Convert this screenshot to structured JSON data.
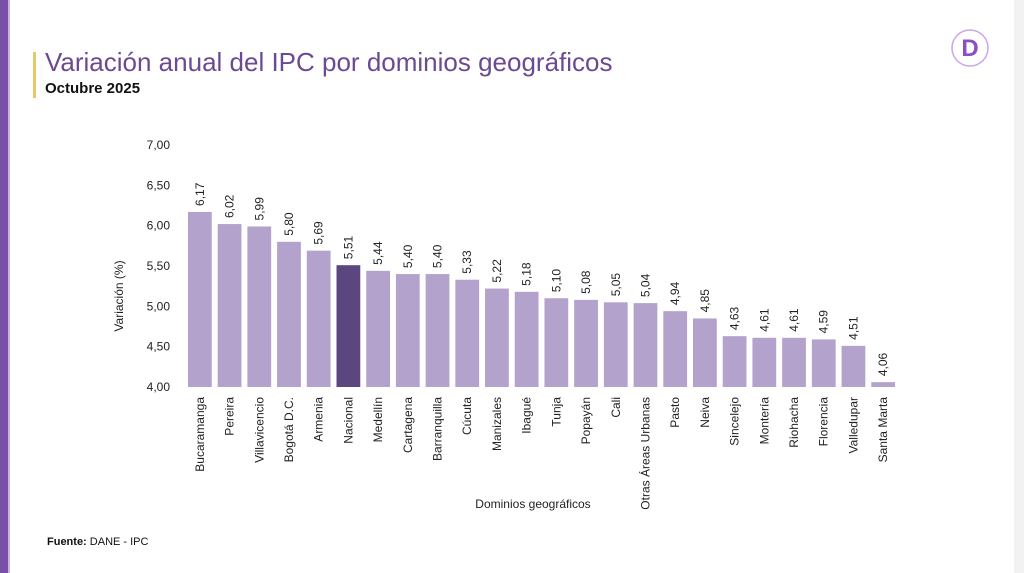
{
  "header": {
    "title": "Variación anual del IPC por dominios geográficos",
    "subtitle": "Octubre 2025"
  },
  "logo": {
    "letter": "D",
    "icon": "brand-d-logo",
    "color": "#8a4fc8"
  },
  "footer": {
    "source_label": "Fuente:",
    "source_value": " DANE - IPC"
  },
  "colors": {
    "bar": "#b3a2cb",
    "highlight": "#5c4680",
    "title": "#6b4a92",
    "accent": "#e8c96a"
  },
  "chart_data": {
    "type": "bar",
    "title": "Variación anual del IPC por dominios geográficos",
    "xlabel": "Dominios geográficos",
    "ylabel": "Variación (%)",
    "ylim": [
      4.0,
      7.0
    ],
    "yticks": [
      "4,00",
      "4,50",
      "5,00",
      "5,50",
      "6,00",
      "6,50",
      "7,00"
    ],
    "categories": [
      "Bucaramanga",
      "Pereira",
      "Villavicencio",
      "Bogotá D.C.",
      "Armenia",
      "Nacional",
      "Medellín",
      "Cartagena",
      "Barranquilla",
      "Cúcuta",
      "Manizales",
      "Ibagué",
      "Tunja",
      "Popayán",
      "Cali",
      "Otras Áreas Urbanas",
      "Pasto",
      "Neiva",
      "Sincelejo",
      "Montería",
      "Riohacha",
      "Florencia",
      "Valledupar",
      "Santa Marta"
    ],
    "values": [
      6.17,
      6.02,
      5.99,
      5.8,
      5.69,
      5.51,
      5.44,
      5.4,
      5.4,
      5.33,
      5.22,
      5.18,
      5.1,
      5.08,
      5.05,
      5.04,
      4.94,
      4.85,
      4.63,
      4.61,
      4.61,
      4.59,
      4.51,
      4.06
    ],
    "labels": [
      "6,17",
      "6,02",
      "5,99",
      "5,80",
      "5,69",
      "5,51",
      "5,44",
      "5,40",
      "5,40",
      "5,33",
      "5,22",
      "5,18",
      "5,10",
      "5,08",
      "5,05",
      "5,04",
      "4,94",
      "4,85",
      "4,63",
      "4,61",
      "4,61",
      "4,59",
      "4,51",
      "4,06"
    ],
    "highlight": "Nacional",
    "grid": false
  }
}
